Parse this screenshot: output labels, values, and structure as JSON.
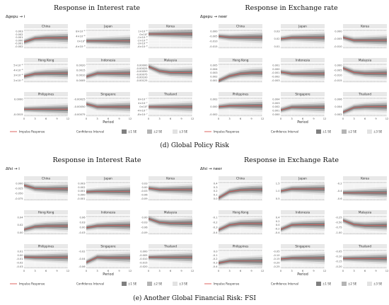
{
  "caption_d": "(d) Global Policy Risk",
  "caption_e": "(e) Another Global Financial Risk: FSI",
  "legend": {
    "impulse": "Impulse Response",
    "ci_title": "Confidence Interval",
    "se1": "±1 SE",
    "se2": "±2 SE",
    "se3": "±3 SE"
  },
  "colors": {
    "line": "#d9534f",
    "band1": "#7f7f7f",
    "band2": "#b4b4b4",
    "band3": "#e2e2e2",
    "panel": "#f4f4f4",
    "title_bar": "#e8e8e8"
  },
  "chart_data": [
    {
      "type": "line",
      "title": "Response in Interest rate",
      "subtitle": "Δgepu → i",
      "xlabel": "Period",
      "x": [
        0,
        3,
        6,
        9,
        12
      ],
      "panels": [
        {
          "name": "China",
          "yticks": [
            "0.003",
            "0.002",
            "0.001",
            "0.000",
            "-0.001",
            "-0.002"
          ],
          "ylim": [
            -0.0025,
            0.0035
          ],
          "values": [
            -0.0004,
            0.0006,
            0.0008,
            0.0008,
            0.0008
          ]
        },
        {
          "name": "Japan",
          "yticks": [
            "8×10⁻⁸",
            "4×10⁻⁸",
            "0×10⁰",
            "-4×10⁻⁸"
          ],
          "ylim": [
            -6e-08,
            9e-08
          ],
          "values": [
            0,
            0,
            0,
            0,
            0
          ]
        },
        {
          "name": "Korea",
          "yticks": [
            "1×10⁻⁸",
            "0×10⁰",
            "-1×10⁻⁸",
            "-2×10⁻⁸",
            "-3×10⁻⁸",
            "-4×10⁻⁸"
          ],
          "ylim": [
            -4.5e-08,
            1.5e-08
          ],
          "values": [
            0,
            0,
            0,
            0,
            0
          ]
        },
        {
          "name": "Hong Kong",
          "yticks": [
            "5×10⁻⁸",
            "4×10⁻⁸",
            "3×10⁻⁸",
            "2×10⁻⁸"
          ],
          "ylim": [
            1.5e-08,
            5.5e-08
          ],
          "values": [
            2.8e-08,
            3.3e-08,
            3.4e-08,
            3.4e-08,
            3.4e-08
          ]
        },
        {
          "name": "Indonesia",
          "yticks": [
            "0.0020",
            "0.0015",
            "0.0010",
            "0.0005"
          ],
          "ylim": [
            0.0003,
            0.0022
          ],
          "values": [
            0.0009,
            0.0012,
            0.0012,
            0.0012,
            0.0012
          ]
        },
        {
          "name": "Malaysia",
          "yticks": [
            "0.00000",
            "-0.00025",
            "-0.00050",
            "-0.00075",
            "-0.00100",
            "-0.00125"
          ],
          "ylim": [
            -0.0013,
            5e-05
          ],
          "values": [
            -0.0002,
            -0.0005,
            -0.0006,
            -0.0006,
            -0.0006
          ]
        },
        {
          "name": "Philippines",
          "yticks": [
            "0.0000",
            "-0.0015"
          ],
          "ylim": [
            -0.0022,
            0.0004
          ],
          "values": [
            -0.0012,
            -0.0012,
            -0.0012,
            -0.0012,
            -0.0012
          ]
        },
        {
          "name": "Singapore",
          "yticks": [
            "-0.00025",
            "-0.00050",
            "-0.00075"
          ],
          "ylim": [
            -0.00085,
            -0.00015
          ],
          "values": [
            -0.0004,
            -0.0005,
            -0.0005,
            -0.0005,
            -0.0005
          ]
        },
        {
          "name": "Thailand",
          "yticks": [
            "8×10⁻⁷",
            "4×10⁻⁷",
            "0×10⁰",
            "-4×10⁻⁷",
            "-8×10⁻⁷"
          ],
          "ylim": [
            -1e-06,
            1e-06
          ],
          "values": [
            0,
            0,
            0,
            0,
            0
          ]
        }
      ]
    },
    {
      "type": "line",
      "title": "Response in Exchange rate",
      "subtitle": "Δgepu → neer",
      "xlabel": "Period",
      "x": [
        0,
        3,
        6,
        9,
        12
      ],
      "panels": [
        {
          "name": "China",
          "yticks": [
            "0.000",
            "-0.005",
            "-0.010",
            "-0.015"
          ],
          "ylim": [
            -0.017,
            0.002
          ],
          "values": [
            -0.005,
            -0.006,
            -0.006,
            -0.006,
            -0.006
          ]
        },
        {
          "name": "Japan",
          "yticks": [
            "0.03",
            "0.02",
            "0.01"
          ],
          "ylim": [
            0.005,
            0.035
          ],
          "values": [
            0.02,
            0.022,
            0.022,
            0.022,
            0.022
          ]
        },
        {
          "name": "Korea",
          "yticks": [
            "0.000",
            "-0.005",
            "-0.010"
          ],
          "ylim": [
            -0.012,
            0.002
          ],
          "values": [
            -0.004,
            -0.006,
            -0.006,
            -0.006,
            -0.006
          ]
        },
        {
          "name": "Hong Kong",
          "yticks": [
            "0.005",
            "0.004",
            "0.003",
            "0.002",
            "0.001"
          ],
          "ylim": [
            0.0005,
            0.0055
          ],
          "values": [
            0.001,
            0.0022,
            0.0028,
            0.003,
            0.003
          ]
        },
        {
          "name": "Indonesia",
          "yticks": [
            "0.001",
            "0.000",
            "-0.001",
            "-0.002",
            "-0.003"
          ],
          "ylim": [
            -0.0035,
            0.0015
          ],
          "values": [
            -0.0008,
            -0.0012,
            -0.0012,
            -0.0012,
            -0.0012
          ]
        },
        {
          "name": "Malaysia",
          "yticks": [
            "0.000",
            "-0.005",
            "-0.010",
            "-0.015"
          ],
          "ylim": [
            -0.017,
            0.002
          ],
          "values": [
            -0.003,
            -0.007,
            -0.008,
            -0.008,
            -0.008
          ]
        },
        {
          "name": "Philippines",
          "yticks": [
            "0.002",
            "0.000",
            "-0.002"
          ],
          "ylim": [
            -0.003,
            0.003
          ],
          "values": [
            0.0,
            0.0003,
            0.0003,
            0.0003,
            0.0003
          ]
        },
        {
          "name": "Singapore",
          "yticks": [
            "0.004",
            "0.003",
            "0.002",
            "0.001",
            "0.000"
          ],
          "ylim": [
            -0.0005,
            0.0045
          ],
          "values": [
            0.0012,
            0.0019,
            0.0019,
            0.0019,
            0.0019
          ]
        },
        {
          "name": "Thailand",
          "yticks": [
            "0.006",
            "0.004",
            "0.002"
          ],
          "ylim": [
            0.0005,
            0.007
          ],
          "values": [
            0.002,
            0.0035,
            0.0038,
            0.0038,
            0.0038
          ]
        }
      ]
    },
    {
      "type": "line",
      "title": "Response in Interest Rate",
      "subtitle": "Δfsi → i",
      "xlabel": "Period",
      "x": [
        0,
        3,
        6,
        9,
        12
      ],
      "panels": [
        {
          "name": "China",
          "yticks": [
            "0.000",
            "-0.025",
            "-0.050",
            "-0.075"
          ],
          "ylim": [
            -0.085,
            0.01
          ],
          "values": [
            -0.01,
            -0.025,
            -0.027,
            -0.027,
            -0.027
          ]
        },
        {
          "name": "Japan",
          "yticks": [
            "0.003",
            "0.002",
            "0.001",
            "0.000",
            "-0.001"
          ],
          "ylim": [
            -0.0015,
            0.0035
          ],
          "values": [
            0.0008,
            0.0009,
            0.0009,
            0.0009,
            0.0009
          ]
        },
        {
          "name": "Korea",
          "yticks": [
            "0.03",
            "0.00",
            "-0.03",
            "-0.06",
            "-0.09"
          ],
          "ylim": [
            -0.1,
            0.04
          ],
          "values": [
            -0.01,
            -0.02,
            -0.02,
            -0.02,
            -0.02
          ]
        },
        {
          "name": "Hong Kong",
          "yticks": [
            "0.04",
            "0.02",
            "0.00"
          ],
          "ylim": [
            -0.005,
            0.05
          ],
          "values": [
            0.01,
            0.018,
            0.02,
            0.02,
            0.02
          ]
        },
        {
          "name": "Indonesia",
          "yticks": [
            "0.06",
            "0.03",
            "0.00",
            "-0.03"
          ],
          "ylim": [
            -0.04,
            0.07
          ],
          "values": [
            0.0,
            0.01,
            0.012,
            0.012,
            0.012
          ]
        },
        {
          "name": "Malaysia",
          "yticks": [
            "0.00",
            "-0.03",
            "-0.06",
            "-0.09"
          ],
          "ylim": [
            -0.1,
            0.01
          ],
          "values": [
            -0.01,
            -0.03,
            -0.035,
            -0.035,
            -0.035
          ]
        },
        {
          "name": "Philippines",
          "yticks": [
            "0.01",
            "0.00",
            "-0.01",
            "-0.02",
            "-0.03"
          ],
          "ylim": [
            -0.035,
            0.015
          ],
          "values": [
            -0.005,
            -0.006,
            -0.006,
            -0.006,
            -0.006
          ]
        },
        {
          "name": "Singapore",
          "yticks": [
            "-0.02",
            "-0.04",
            "-0.06"
          ],
          "ylim": [
            -0.07,
            -0.01
          ],
          "values": [
            -0.05,
            -0.035,
            -0.036,
            -0.036,
            -0.036
          ]
        },
        {
          "name": "Thailand",
          "yticks": [
            "0.000",
            "-0.005",
            "-0.010",
            "-0.015",
            "-0.020"
          ],
          "ylim": [
            -0.022,
            0.002
          ],
          "values": [
            -0.008,
            -0.008,
            -0.008,
            -0.008,
            -0.008
          ]
        }
      ]
    },
    {
      "type": "line",
      "title": "Response in Exchange Rate",
      "subtitle": "Δfsi → neer",
      "xlabel": "Period",
      "x": [
        0,
        3,
        6,
        9,
        12
      ],
      "panels": [
        {
          "name": "China",
          "yticks": [
            "0.4",
            "0.3",
            "0.2",
            "0.1",
            "0.0"
          ],
          "ylim": [
            -0.02,
            0.45
          ],
          "values": [
            0.05,
            0.2,
            0.24,
            0.25,
            0.25
          ]
        },
        {
          "name": "Japan",
          "yticks": [
            "1.5",
            "1.0",
            "0.5"
          ],
          "ylim": [
            0.3,
            1.7
          ],
          "values": [
            1.0,
            1.15,
            1.15,
            1.15,
            1.15
          ]
        },
        {
          "name": "Korea",
          "yticks": [
            "-0.2",
            "-0.4",
            "-0.6"
          ],
          "ylim": [
            -0.7,
            -0.1
          ],
          "values": [
            -0.45,
            -0.45,
            -0.45,
            -0.45,
            -0.45
          ]
        },
        {
          "name": "Hong Kong",
          "yticks": [
            "-0.1",
            "-0.2",
            "-0.3",
            "-0.4"
          ],
          "ylim": [
            -0.45,
            -0.05
          ],
          "values": [
            -0.35,
            -0.25,
            -0.22,
            -0.22,
            -0.22
          ]
        },
        {
          "name": "Indonesia",
          "yticks": [
            "0.4",
            "0.2",
            "0.0",
            "-0.2",
            "-0.4"
          ],
          "ylim": [
            -0.45,
            0.45
          ],
          "values": [
            -0.2,
            0.0,
            0.02,
            0.02,
            0.02
          ]
        },
        {
          "name": "Malaysia",
          "yticks": [
            "-0.25",
            "-0.50",
            "-0.75",
            "-1.00"
          ],
          "ylim": [
            -1.1,
            -0.15
          ],
          "values": [
            -0.4,
            -0.6,
            -0.65,
            -0.65,
            -0.65
          ]
        },
        {
          "name": "Philippines",
          "yticks": [
            "0.0",
            "-0.1",
            "-0.2",
            "-0.3",
            "-0.4"
          ],
          "ylim": [
            -0.45,
            0.05
          ],
          "values": [
            -0.3,
            -0.25,
            -0.25,
            -0.25,
            -0.25
          ]
        },
        {
          "name": "Singapore",
          "yticks": [
            "-0.05",
            "-0.10",
            "-0.15",
            "-0.20",
            "-0.25"
          ],
          "ylim": [
            -0.27,
            -0.03
          ],
          "values": [
            -0.15,
            -0.14,
            -0.14,
            -0.14,
            -0.14
          ]
        },
        {
          "name": "Thailand",
          "yticks": [
            "-0.05",
            "-0.10",
            "-0.15",
            "-0.20"
          ],
          "ylim": [
            -0.22,
            -0.03
          ],
          "values": [
            -0.12,
            -0.12,
            -0.12,
            -0.12,
            -0.12
          ]
        }
      ]
    }
  ]
}
